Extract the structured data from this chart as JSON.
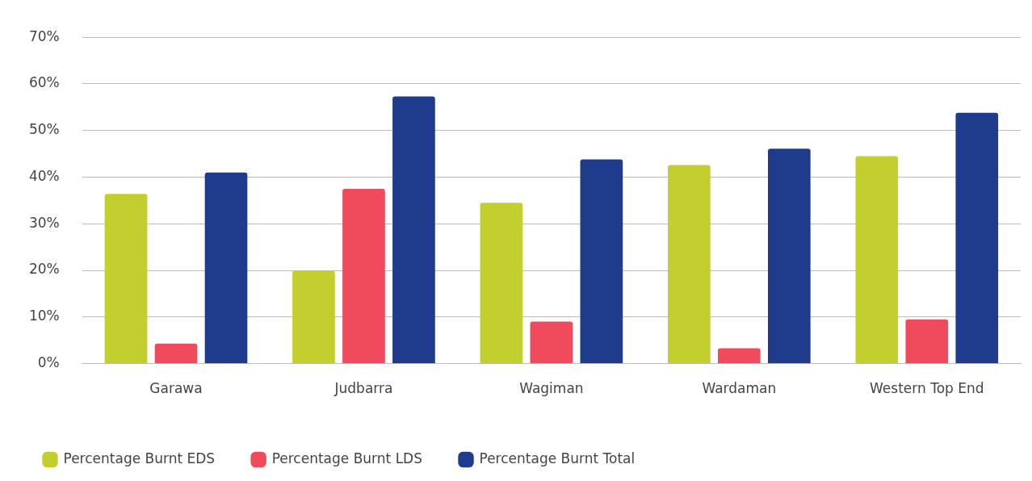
{
  "chart_data": {
    "type": "bar",
    "categories": [
      "Garawa",
      "Judbarra",
      "Wagiman",
      "Wardaman",
      "Western Top End"
    ],
    "series": [
      {
        "name": "Percentage Burnt EDS",
        "color": "#c3cf2f",
        "values": [
          36.4,
          19.9,
          34.5,
          42.6,
          44.5
        ]
      },
      {
        "name": "Percentage Burnt LDS",
        "color": "#ef4b5c",
        "values": [
          4.3,
          37.5,
          9.0,
          3.3,
          9.5
        ]
      },
      {
        "name": "Percentage Burnt Total",
        "color": "#1f3c8c",
        "values": [
          41.0,
          57.3,
          43.8,
          46.1,
          53.8
        ]
      }
    ],
    "ylim": [
      0,
      70
    ],
    "yticks": [
      {
        "value": 0,
        "label": "0%"
      },
      {
        "value": 10,
        "label": "10%"
      },
      {
        "value": 20,
        "label": "20%"
      },
      {
        "value": 30,
        "label": "30%"
      },
      {
        "value": 40,
        "label": "40%"
      },
      {
        "value": 50,
        "label": "50%"
      },
      {
        "value": 60,
        "label": "60%"
      },
      {
        "value": 70,
        "label": "70%"
      }
    ],
    "grid": "y",
    "legend": "bottom left"
  }
}
